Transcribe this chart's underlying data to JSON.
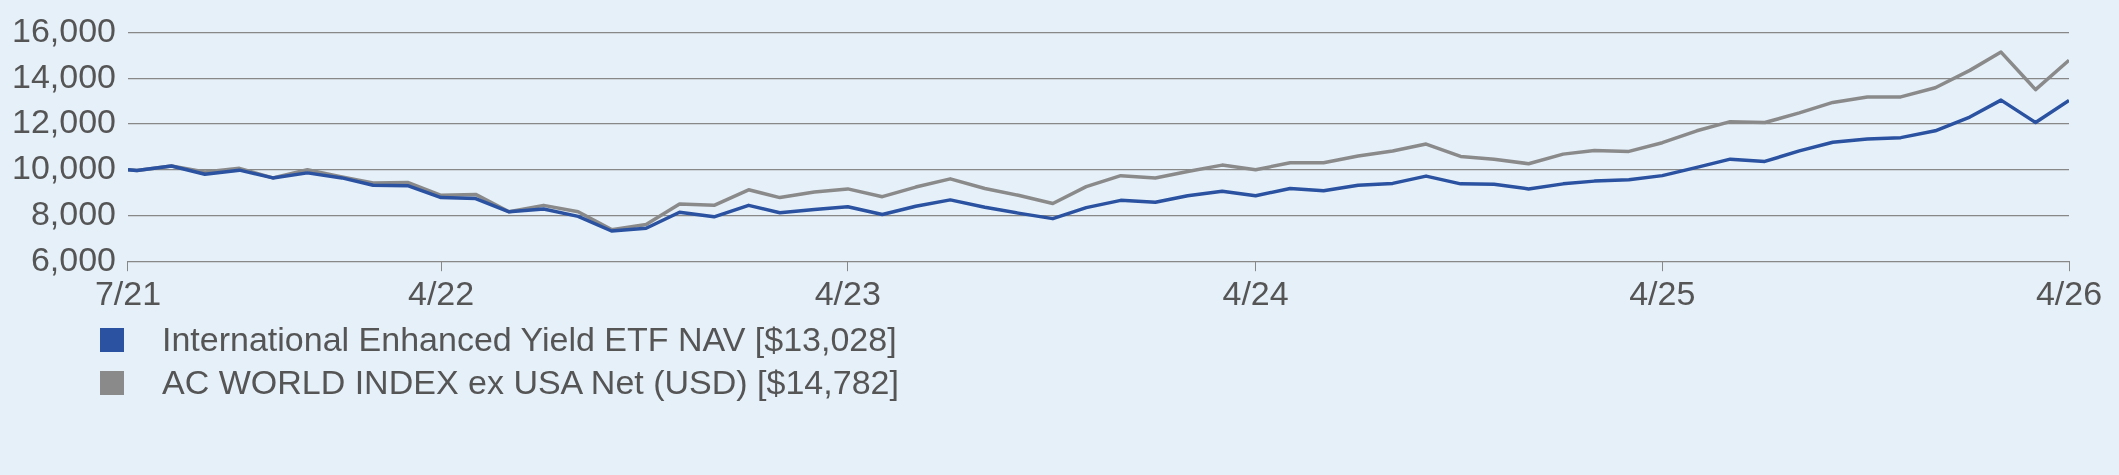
{
  "chart_data": {
    "type": "line",
    "x": [
      "2021-07-23",
      "2021-07-31",
      "2021-08-31",
      "2021-09-30",
      "2021-10-31",
      "2021-11-30",
      "2021-12-31",
      "2022-01-31",
      "2022-02-28",
      "2022-03-31",
      "2022-04-30",
      "2022-05-31",
      "2022-06-30",
      "2022-07-31",
      "2022-08-31",
      "2022-09-30",
      "2022-10-31",
      "2022-11-30",
      "2022-12-31",
      "2023-01-31",
      "2023-02-28",
      "2023-03-31",
      "2023-04-30",
      "2023-05-31",
      "2023-06-30",
      "2023-07-31",
      "2023-08-31",
      "2023-09-30",
      "2023-10-31",
      "2023-11-30",
      "2023-12-31",
      "2024-01-31",
      "2024-02-29",
      "2024-03-31",
      "2024-04-30",
      "2024-05-31",
      "2024-06-30",
      "2024-07-31",
      "2024-08-31",
      "2024-09-30",
      "2024-10-31",
      "2024-11-30",
      "2024-12-31",
      "2025-01-31",
      "2025-02-28",
      "2025-03-31",
      "2025-04-30",
      "2025-05-31",
      "2025-06-30",
      "2025-07-31",
      "2025-08-31",
      "2025-09-30",
      "2025-10-31",
      "2025-11-30",
      "2025-12-31",
      "2026-01-31",
      "2026-02-28",
      "2026-03-31",
      "2026-04-30"
    ],
    "series": [
      {
        "name": "International Enhanced Yield ETF NAV [$13,028]",
        "color": "#2a52a0",
        "values": [
          10000,
          9960,
          10160,
          9800,
          9980,
          9640,
          9860,
          9640,
          9320,
          9300,
          8780,
          8740,
          8160,
          8280,
          7960,
          7320,
          7440,
          8140,
          7940,
          8440,
          8120,
          8260,
          8380,
          8040,
          8400,
          8680,
          8360,
          8100,
          7860,
          8340,
          8660,
          8580,
          8860,
          9060,
          8860,
          9180,
          9080,
          9320,
          9400,
          9720,
          9380,
          9360,
          9160,
          9380,
          9500,
          9560,
          9740,
          10100,
          10460,
          10360,
          10820,
          11200,
          11340,
          11400,
          11700,
          12300,
          13040,
          12060,
          13028
        ]
      },
      {
        "name": "AC WORLD INDEX ex USA Net (USD) [$14,782]",
        "color": "#8a8a8a",
        "values": [
          10000,
          9960,
          10160,
          9900,
          10060,
          9640,
          10000,
          9680,
          9420,
          9440,
          8880,
          8920,
          8160,
          8440,
          8160,
          7380,
          7600,
          8500,
          8440,
          9120,
          8780,
          9020,
          9160,
          8820,
          9240,
          9600,
          9180,
          8880,
          8520,
          9260,
          9740,
          9640,
          9920,
          10200,
          10000,
          10300,
          10300,
          10600,
          10820,
          11120,
          10580,
          10460,
          10260,
          10680,
          10840,
          10800,
          11180,
          11700,
          12100,
          12060,
          12480,
          12940,
          13180,
          13180,
          13580,
          14340,
          15140,
          13500,
          14782
        ]
      }
    ],
    "xlim": [
      "2021-07-23",
      "2026-04-30"
    ],
    "xticks": [
      {
        "value": "2021-07-23",
        "label": "7/21"
      },
      {
        "value": "2022-04-30",
        "label": "4/22"
      },
      {
        "value": "2023-04-30",
        "label": "4/23"
      },
      {
        "value": "2024-04-30",
        "label": "4/24"
      },
      {
        "value": "2025-04-30",
        "label": "4/25"
      },
      {
        "value": "2026-04-30",
        "label": "4/26"
      }
    ],
    "ylim": [
      6000,
      16000
    ],
    "yticks": [
      {
        "value": 6000,
        "label": "6,000"
      },
      {
        "value": 8000,
        "label": "8,000"
      },
      {
        "value": 10000,
        "label": "10,000"
      },
      {
        "value": 12000,
        "label": "12,000"
      },
      {
        "value": 14000,
        "label": "14,000"
      },
      {
        "value": 16000,
        "label": "16,000"
      }
    ],
    "grid": "y",
    "legend": "bottom left",
    "marker": "none",
    "line_style": "solid"
  }
}
